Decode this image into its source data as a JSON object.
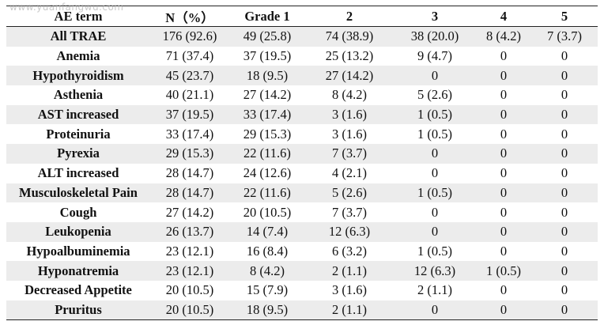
{
  "watermark": "www.yuanfangwu.com",
  "table": {
    "headers": [
      "AE term",
      "N（%）",
      "Grade 1",
      "2",
      "3",
      "4",
      "5"
    ],
    "rows": [
      [
        "All TRAE",
        "176 (92.6)",
        "49 (25.8)",
        "74 (38.9)",
        "38 (20.0)",
        "8 (4.2)",
        "7 (3.7)"
      ],
      [
        "Anemia",
        "71 (37.4)",
        "37 (19.5)",
        "25 (13.2)",
        "9 (4.7)",
        "0",
        "0"
      ],
      [
        "Hypothyroidism",
        "45 (23.7)",
        "18 (9.5)",
        "27 (14.2)",
        "0",
        "0",
        "0"
      ],
      [
        "Asthenia",
        "40 (21.1)",
        "27 (14.2)",
        "8 (4.2)",
        "5 (2.6)",
        "0",
        "0"
      ],
      [
        "AST increased",
        "37 (19.5)",
        "33 (17.4)",
        "3 (1.6)",
        "1 (0.5)",
        "0",
        "0"
      ],
      [
        "Proteinuria",
        "33 (17.4)",
        "29 (15.3)",
        "3 (1.6)",
        "1 (0.5)",
        "0",
        "0"
      ],
      [
        "Pyrexia",
        "29 (15.3)",
        "22 (11.6)",
        "7 (3.7)",
        "0",
        "0",
        "0"
      ],
      [
        "ALT increased",
        "28 (14.7)",
        "24 (12.6)",
        "4 (2.1)",
        "0",
        "0",
        "0"
      ],
      [
        "Musculoskeletal Pain",
        "28 (14.7)",
        "22 (11.6)",
        "5 (2.6)",
        "1 (0.5)",
        "0",
        "0"
      ],
      [
        "Cough",
        "27 (14.2)",
        "20 (10.5)",
        "7 (3.7)",
        "0",
        "0",
        "0"
      ],
      [
        "Leukopenia",
        "26 (13.7)",
        "14 (7.4)",
        "12 (6.3)",
        "0",
        "0",
        "0"
      ],
      [
        "Hypoalbuminemia",
        "23 (12.1)",
        "16 (8.4)",
        "6 (3.2)",
        "1 (0.5)",
        "0",
        "0"
      ],
      [
        "Hyponatremia",
        "23 (12.1)",
        "8 (4.2)",
        "2 (1.1)",
        "12 (6.3)",
        "1 (0.5)",
        "0"
      ],
      [
        "Decreased Appetite",
        "20 (10.5)",
        "15 (7.9)",
        "3 (1.6)",
        "2 (1.1)",
        "0",
        "0"
      ],
      [
        "Pruritus",
        "20 (10.5)",
        "18 (9.5)",
        "2 (1.1)",
        "0",
        "0",
        "0"
      ]
    ]
  }
}
